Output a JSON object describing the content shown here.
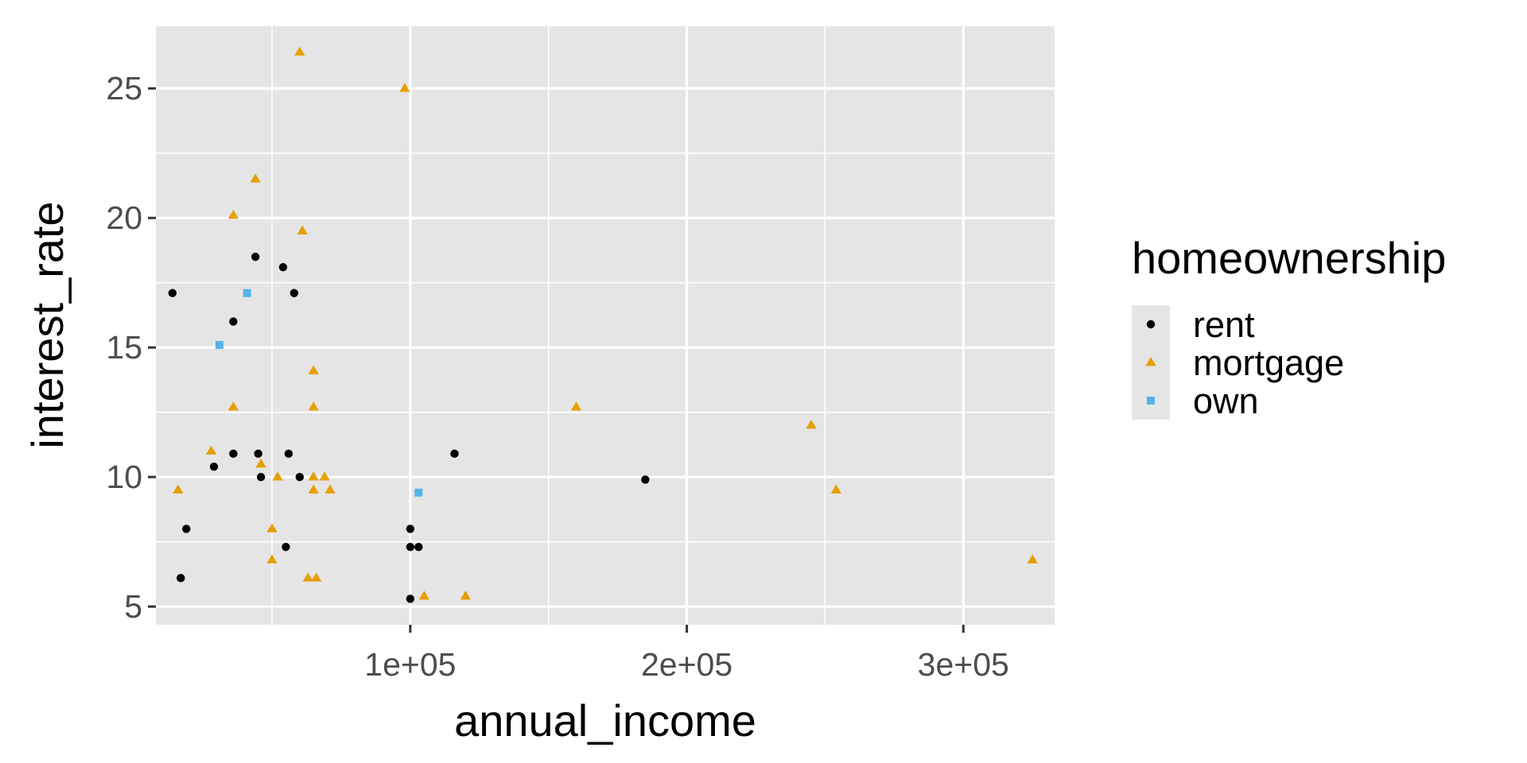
{
  "chart_data": {
    "type": "scatter",
    "xlabel": "annual_income",
    "ylabel": "interest_rate",
    "xlim": [
      8000,
      333000
    ],
    "ylim": [
      4.3,
      27.4
    ],
    "x_ticks": [
      {
        "value": 100000,
        "label": "1e+05"
      },
      {
        "value": 200000,
        "label": "2e+05"
      },
      {
        "value": 300000,
        "label": "3e+05"
      }
    ],
    "x_minor_ticks": [
      50000,
      150000,
      250000
    ],
    "y_ticks": [
      {
        "value": 5,
        "label": "5"
      },
      {
        "value": 10,
        "label": "10"
      },
      {
        "value": 15,
        "label": "15"
      },
      {
        "value": 20,
        "label": "20"
      },
      {
        "value": 25,
        "label": "25"
      }
    ],
    "y_minor_ticks": [
      7.5,
      12.5,
      17.5,
      22.5
    ],
    "grid": true,
    "panel_color": "#e5e5e5",
    "grid_color": "#ffffff",
    "legend": {
      "title": "homeownership",
      "position": "right",
      "key_background": "#e5e5e5"
    },
    "series": [
      {
        "name": "rent",
        "shape": "circle",
        "color": "#000000",
        "points": [
          [
            14000,
            17.1
          ],
          [
            17000,
            6.1
          ],
          [
            19000,
            8.0
          ],
          [
            29000,
            10.4
          ],
          [
            36000,
            16.0
          ],
          [
            36000,
            10.9
          ],
          [
            44000,
            18.5
          ],
          [
            45000,
            10.9
          ],
          [
            46000,
            10.0
          ],
          [
            54000,
            18.1
          ],
          [
            55000,
            7.3
          ],
          [
            56000,
            10.9
          ],
          [
            58000,
            17.1
          ],
          [
            60000,
            10.0
          ],
          [
            100000,
            8.0
          ],
          [
            100000,
            7.3
          ],
          [
            100000,
            5.3
          ],
          [
            103000,
            7.3
          ],
          [
            116000,
            10.9
          ],
          [
            185000,
            9.9
          ]
        ]
      },
      {
        "name": "mortgage",
        "shape": "triangle",
        "color": "#e69f00",
        "points": [
          [
            16000,
            9.5
          ],
          [
            28000,
            11.0
          ],
          [
            36000,
            20.1
          ],
          [
            36000,
            12.7
          ],
          [
            44000,
            21.5
          ],
          [
            46000,
            10.5
          ],
          [
            50000,
            6.8
          ],
          [
            50000,
            8.0
          ],
          [
            52000,
            10.0
          ],
          [
            60000,
            26.4
          ],
          [
            61000,
            19.5
          ],
          [
            63000,
            6.1
          ],
          [
            65000,
            14.1
          ],
          [
            65000,
            12.7
          ],
          [
            65000,
            10.0
          ],
          [
            65000,
            9.5
          ],
          [
            66000,
            6.1
          ],
          [
            69000,
            10.0
          ],
          [
            71000,
            9.5
          ],
          [
            98000,
            25.0
          ],
          [
            105000,
            5.4
          ],
          [
            120000,
            5.4
          ],
          [
            160000,
            12.7
          ],
          [
            245000,
            12.0
          ],
          [
            254000,
            9.5
          ],
          [
            325000,
            6.8
          ]
        ]
      },
      {
        "name": "own",
        "shape": "square",
        "color": "#56b4e9",
        "points": [
          [
            31000,
            15.1
          ],
          [
            41000,
            17.1
          ],
          [
            103000,
            9.4
          ]
        ]
      }
    ]
  }
}
